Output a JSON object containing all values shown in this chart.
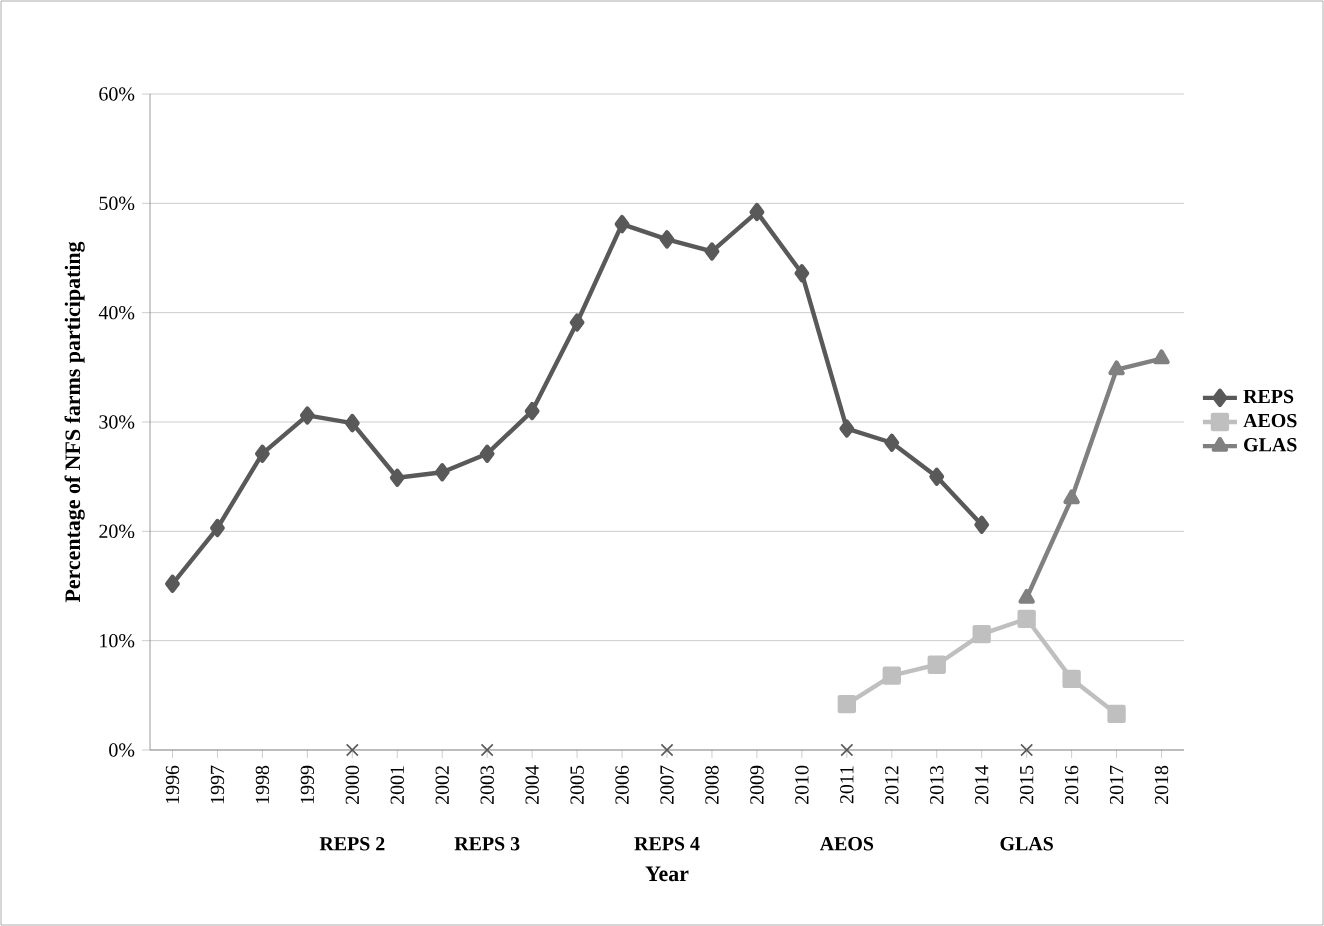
{
  "chart_data": {
    "type": "line",
    "xlabel": "Year",
    "ylabel": "Percentage of NFS farms participating",
    "categories": [
      "1996",
      "1997",
      "1998",
      "1999",
      "2000",
      "2001",
      "2002",
      "2003",
      "2004",
      "2005",
      "2006",
      "2007",
      "2008",
      "2009",
      "2010",
      "2011",
      "2012",
      "2013",
      "2014",
      "2015",
      "2016",
      "2017",
      "2018"
    ],
    "series": [
      {
        "name": "REPS",
        "color": "#595959",
        "marker": "diamond",
        "values": [
          15.2,
          20.3,
          27.1,
          30.6,
          29.9,
          24.9,
          25.4,
          27.1,
          31.0,
          39.1,
          48.1,
          46.7,
          45.6,
          49.2,
          43.6,
          29.4,
          28.1,
          25.0,
          20.6,
          null,
          null,
          null,
          null
        ]
      },
      {
        "name": "AEOS",
        "color": "#bfbfbf",
        "marker": "square",
        "values": [
          null,
          null,
          null,
          null,
          null,
          null,
          null,
          null,
          null,
          null,
          null,
          null,
          null,
          null,
          null,
          4.2,
          6.8,
          7.8,
          10.6,
          12.0,
          6.5,
          3.3,
          null
        ]
      },
      {
        "name": "GLAS",
        "color": "#808080",
        "marker": "triangle",
        "values": [
          null,
          null,
          null,
          null,
          null,
          null,
          null,
          null,
          null,
          null,
          null,
          null,
          null,
          null,
          null,
          null,
          null,
          null,
          null,
          13.9,
          23.0,
          34.8,
          35.8
        ]
      },
      {
        "type": "scatter",
        "color": "#595959",
        "marker": "cross",
        "values": [
          null,
          null,
          null,
          null,
          0,
          null,
          null,
          0,
          null,
          null,
          null,
          0,
          null,
          null,
          null,
          0,
          null,
          null,
          null,
          0,
          null,
          null,
          null
        ]
      }
    ],
    "annotations": [
      "REPS 2",
      "REPS 3",
      "REPS 4",
      "AEOS",
      "GLAS"
    ],
    "ylim": [
      0,
      60
    ],
    "yticks": [
      {
        "value": 0,
        "label": "0%"
      },
      {
        "value": 10,
        "label": "10%"
      },
      {
        "value": 20,
        "label": "20%"
      },
      {
        "value": 30,
        "label": "30%"
      },
      {
        "value": 40,
        "label": "40%"
      },
      {
        "value": 50,
        "label": "50%"
      },
      {
        "value": 60,
        "label": "60%"
      }
    ],
    "grid": "y",
    "legend": "right"
  }
}
